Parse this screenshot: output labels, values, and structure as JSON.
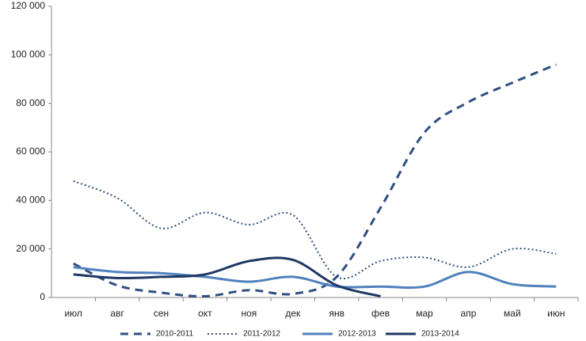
{
  "chart_data": {
    "type": "line",
    "categories": [
      "июл",
      "авг",
      "сен",
      "окт",
      "ноя",
      "дек",
      "янв",
      "фев",
      "мар",
      "апр",
      "май",
      "июн"
    ],
    "series": [
      {
        "name": "2010-2011",
        "color": "#2f4f7f",
        "line_style": "dashed",
        "values": [
          14000,
          5000,
          2000,
          500,
          3000,
          1500,
          8500,
          37000,
          68000,
          80500,
          88500,
          96000
        ]
      },
      {
        "name": "2011-2012",
        "color": "#2f4f7f",
        "line_style": "dotted",
        "values": [
          48000,
          41000,
          28500,
          35000,
          30000,
          34000,
          8500,
          15000,
          16500,
          12500,
          20000,
          18000
        ]
      },
      {
        "name": "2012-2013",
        "color": "#4f81bd",
        "line_style": "solid",
        "values": [
          12500,
          10500,
          10000,
          8500,
          6500,
          8500,
          4500,
          4500,
          4500,
          10500,
          5500,
          4500
        ]
      },
      {
        "name": "2013-2014",
        "color": "#1f3864",
        "line_style": "solid",
        "values": [
          9500,
          8000,
          8500,
          9500,
          15000,
          15500,
          5000,
          500,
          null,
          null,
          null,
          null
        ]
      }
    ],
    "ylim": [
      0,
      120000
    ],
    "yticks": [
      0,
      {
        "value": 20000,
        "label": "20 000"
      },
      {
        "value": 40000,
        "label": "40 000"
      },
      {
        "value": 60000,
        "label": "60 000"
      },
      {
        "value": 80000,
        "label": "80 000"
      },
      {
        "value": 100000,
        "label": "100 000"
      },
      {
        "value": 120000,
        "label": "120 000"
      }
    ],
    "grid": false,
    "legend": "bottom"
  }
}
